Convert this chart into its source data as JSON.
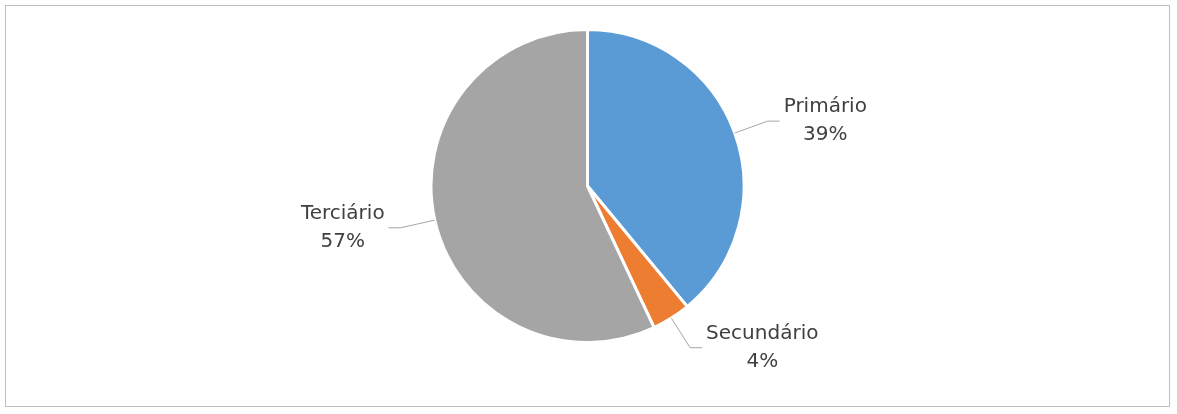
{
  "chart_data": {
    "type": "pie",
    "categories": [
      "Primário",
      "Secundário",
      "Terciário"
    ],
    "values": [
      39,
      4,
      57
    ],
    "colors": [
      "#5b9bd5",
      "#ed7d31",
      "#a5a5a5"
    ],
    "value_labels": [
      "39%",
      "4%",
      "57%"
    ],
    "legend": false
  }
}
